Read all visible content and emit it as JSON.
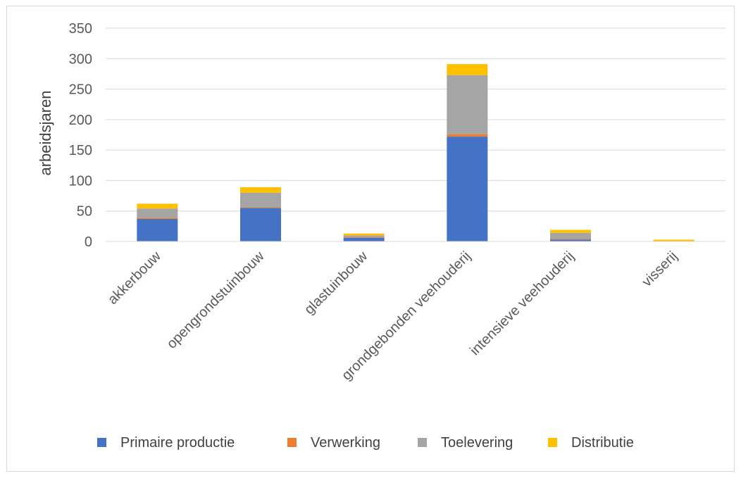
{
  "chart_data": {
    "type": "bar",
    "stacked": true,
    "title": "",
    "xlabel": "",
    "ylabel": "arbeidsjaren",
    "ylim": [
      0,
      350
    ],
    "yticks": [
      0,
      50,
      100,
      150,
      200,
      250,
      300,
      350
    ],
    "grid": true,
    "legend": "bottom",
    "categories": [
      "akkerbouw",
      "opengrondstuinbouw",
      "glastuinbouw",
      "grondgebonden veehouderij",
      "intensieve veehouderij",
      "visserij"
    ],
    "series": [
      {
        "name": "Primaire productie",
        "color": "#4472c4",
        "values": [
          37,
          55,
          6,
          172,
          3,
          0
        ]
      },
      {
        "name": "Verwerking",
        "color": "#ed7d31",
        "values": [
          2,
          1,
          1,
          4,
          1,
          0
        ]
      },
      {
        "name": "Toelevering",
        "color": "#a5a5a5",
        "values": [
          15,
          24,
          3,
          97,
          10,
          0
        ]
      },
      {
        "name": "Distributie",
        "color": "#ffc000",
        "values": [
          8,
          9,
          3,
          18,
          5,
          3
        ]
      }
    ]
  }
}
